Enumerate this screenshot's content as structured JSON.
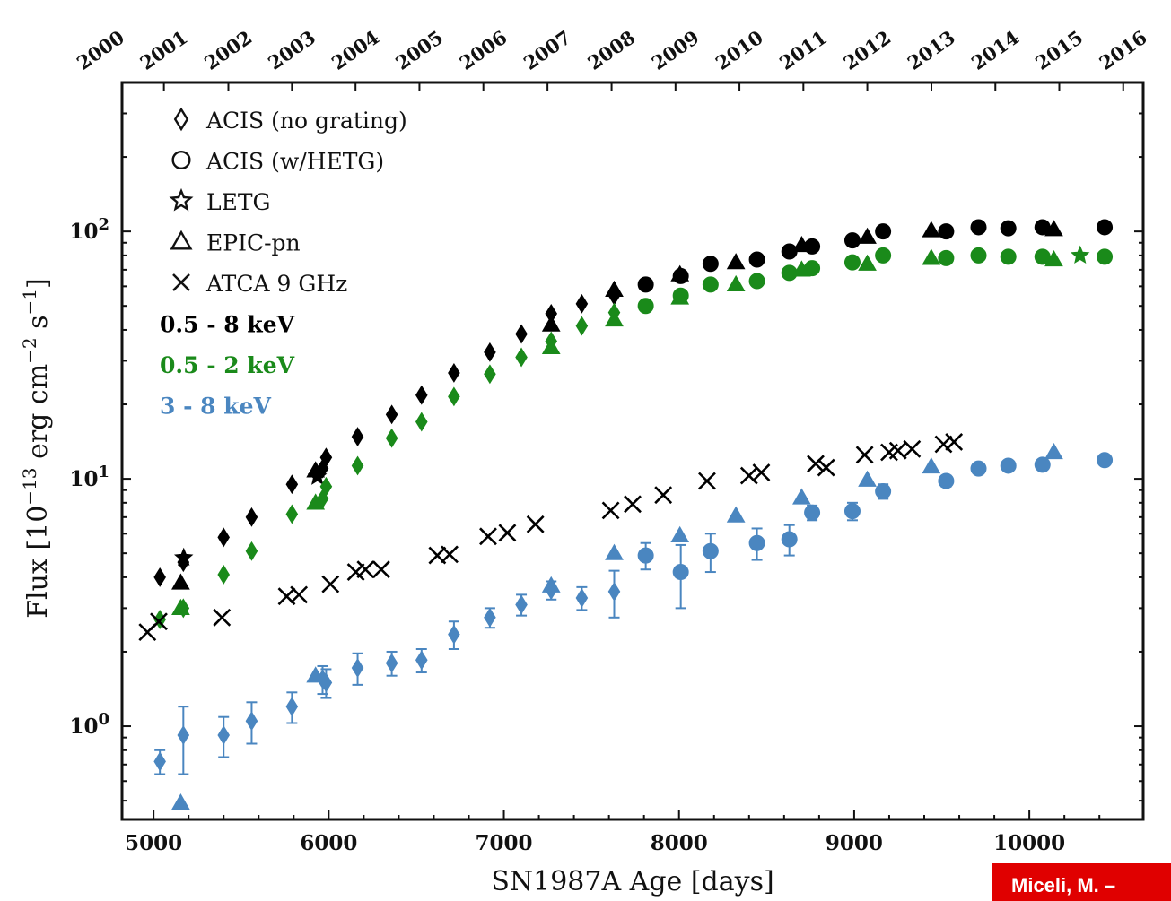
{
  "citation": "Miceli, M. –",
  "chart_data": {
    "type": "scatter",
    "xlabel": "SN1987A Age [days]",
    "ylabel": "Flux [10⁻¹³ erg cm⁻² s⁻¹]",
    "ylabel_parts": {
      "base": "Flux [10",
      "exp1": "−13",
      "mid": " erg cm",
      "exp2": "−2",
      "mid2": " s",
      "exp3": "−1",
      "end": "]"
    },
    "xlim": [
      4820,
      10650
    ],
    "ylim": [
      0.42,
      400
    ],
    "yscale": "log",
    "xticks": [
      5000,
      6000,
      7000,
      8000,
      9000,
      10000
    ],
    "yticks": [
      {
        "value": 1,
        "exp": "0"
      },
      {
        "value": 10,
        "exp": "1"
      },
      {
        "value": 100,
        "exp": "2"
      }
    ],
    "top_axis": {
      "years": [
        "2000",
        "2001",
        "2002",
        "2003",
        "2004",
        "2005",
        "2006",
        "2007",
        "2008",
        "2009",
        "2010",
        "2011",
        "2012",
        "2013",
        "2014",
        "2015",
        "2016"
      ],
      "year_day_positions": [
        4698,
        5059,
        5427,
        5790,
        6153,
        6518,
        6883,
        7249,
        7615,
        7980,
        8345,
        8710,
        9075,
        9441,
        9806,
        10171,
        10536
      ]
    },
    "legend": {
      "placement": "top-left",
      "markers": [
        {
          "symbol": "diamond",
          "label": "ACIS (no grating)"
        },
        {
          "symbol": "circle",
          "label": "ACIS (w/HETG)"
        },
        {
          "symbol": "star",
          "label": "LETG"
        },
        {
          "symbol": "triangle",
          "label": "EPIC-pn"
        },
        {
          "symbol": "cross",
          "label": "ATCA 9 GHz"
        }
      ],
      "bands": [
        {
          "label": "0.5 - 8 keV",
          "color": "#000000"
        },
        {
          "label": "0.5 - 2 keV",
          "color": "#1a8a1a"
        },
        {
          "label": "3 - 8 keV",
          "color": "#4a86c0"
        }
      ]
    },
    "series": [
      {
        "band": "0.5 - 8 keV",
        "color": "#000000",
        "marker": "diamond",
        "x": [
          5036,
          5170,
          5400,
          5560,
          5790,
          5965,
          5985,
          6165,
          6360,
          6530,
          6715,
          6920,
          7100,
          7270,
          7445,
          7630
        ],
        "y": [
          4.0,
          4.6,
          5.8,
          7.0,
          9.5,
          11.0,
          12.2,
          14.8,
          18.2,
          21.8,
          26.8,
          32.5,
          38.5,
          46.5,
          51.0,
          55.0
        ]
      },
      {
        "band": "0.5 - 8 keV",
        "color": "#000000",
        "marker": "circle",
        "x": [
          7810,
          8010,
          8180,
          8445,
          8630,
          8760,
          8990,
          9165,
          9525,
          9710,
          9880,
          10075,
          10430
        ],
        "y": [
          61,
          66,
          74,
          77,
          83,
          87,
          92,
          100,
          100,
          104,
          103,
          104,
          104
        ]
      },
      {
        "band": "0.5 - 8 keV",
        "color": "#000000",
        "marker": "triangle",
        "x": [
          5155,
          5925,
          7270,
          7630,
          8005,
          8325,
          8700,
          9075,
          9440,
          10140
        ],
        "y": [
          3.8,
          10.8,
          42,
          58,
          67,
          75,
          88,
          95,
          101,
          102
        ]
      },
      {
        "band": "0.5 - 8 keV",
        "color": "#000000",
        "marker": "star",
        "x": [
          5172,
          5935
        ],
        "y": [
          4.8,
          10.2
        ]
      },
      {
        "band": "0.5 - 2 keV",
        "color": "#1a8a1a",
        "marker": "diamond",
        "x": [
          5036,
          5170,
          5400,
          5560,
          5790,
          5965,
          5985,
          6165,
          6360,
          6530,
          6715,
          6920,
          7100,
          7270,
          7445,
          7630
        ],
        "y": [
          2.7,
          3.0,
          4.1,
          5.1,
          7.2,
          8.3,
          9.3,
          11.3,
          14.6,
          17.0,
          21.5,
          26.5,
          31.0,
          36.0,
          41.5,
          47.0
        ]
      },
      {
        "band": "0.5 - 2 keV",
        "color": "#1a8a1a",
        "marker": "circle",
        "x": [
          7810,
          8010,
          8180,
          8445,
          8630,
          8760,
          8990,
          9165,
          9525,
          9710,
          9880,
          10075,
          10430
        ],
        "y": [
          50,
          55,
          61,
          63,
          68,
          71,
          75,
          80,
          78,
          80,
          79,
          79,
          79
        ]
      },
      {
        "band": "0.5 - 2 keV",
        "color": "#1a8a1a",
        "marker": "triangle",
        "x": [
          5155,
          5925,
          7270,
          7630,
          8005,
          8325,
          8700,
          9075,
          9440,
          10140
        ],
        "y": [
          3.0,
          8.0,
          34,
          44,
          54,
          61,
          70,
          74,
          78,
          77
        ]
      },
      {
        "band": "0.5 - 2 keV",
        "color": "#1a8a1a",
        "marker": "star",
        "x": [
          10290
        ],
        "y": [
          80
        ]
      },
      {
        "band": "3 - 8 keV",
        "color": "#4a86c0",
        "marker": "diamond",
        "x": [
          5036,
          5170,
          5400,
          5560,
          5790,
          5965,
          5985,
          6165,
          6360,
          6530,
          6715,
          6920,
          7100,
          7270,
          7445,
          7630
        ],
        "y": [
          0.72,
          0.92,
          0.92,
          1.05,
          1.2,
          1.55,
          1.5,
          1.72,
          1.8,
          1.85,
          2.35,
          2.75,
          3.1,
          3.55,
          3.3,
          3.5
        ],
        "yerr": [
          0.08,
          0.28,
          0.17,
          0.2,
          0.17,
          0.2,
          0.2,
          0.25,
          0.2,
          0.2,
          0.3,
          0.25,
          0.3,
          0.3,
          0.35,
          0.75
        ]
      },
      {
        "band": "3 - 8 keV",
        "color": "#4a86c0",
        "marker": "circle",
        "x": [
          7810,
          8010,
          8180,
          8445,
          8630,
          8760,
          8990,
          9165,
          9525,
          9710,
          9880,
          10075,
          10430
        ],
        "y": [
          4.9,
          4.2,
          5.1,
          5.5,
          5.7,
          7.3,
          7.4,
          8.9,
          9.8,
          11.0,
          11.3,
          11.4,
          11.9
        ],
        "yerr": [
          0.6,
          1.2,
          0.9,
          0.8,
          0.8,
          0.5,
          0.6,
          0.6,
          0.5,
          0.5,
          0.4,
          0.5,
          0.4
        ]
      },
      {
        "band": "3 - 8 keV",
        "color": "#4a86c0",
        "marker": "triangle",
        "x": [
          5155,
          5925,
          7270,
          7630,
          8005,
          8325,
          8700,
          9075,
          9440,
          10140
        ],
        "y": [
          0.49,
          1.6,
          3.7,
          5.0,
          5.9,
          7.1,
          8.4,
          9.9,
          11.2,
          12.8
        ]
      }
    ],
    "radio": {
      "label": "ATCA 9 GHz",
      "color": "#000000",
      "marker": "cross",
      "x": [
        4965,
        5030,
        5390,
        5760,
        5830,
        6010,
        6155,
        6210,
        6300,
        6620,
        6690,
        6910,
        7020,
        7180,
        7610,
        7735,
        7910,
        8160,
        8400,
        8470,
        8780,
        8840,
        9060,
        9200,
        9250,
        9330,
        9510,
        9570
      ],
      "y": [
        2.4,
        2.65,
        2.75,
        3.35,
        3.4,
        3.75,
        4.2,
        4.3,
        4.3,
        4.9,
        4.95,
        5.85,
        6.05,
        6.55,
        7.45,
        7.9,
        8.6,
        9.8,
        10.3,
        10.6,
        11.5,
        11.1,
        12.5,
        12.8,
        13.0,
        13.2,
        13.8,
        14.1
      ]
    }
  }
}
